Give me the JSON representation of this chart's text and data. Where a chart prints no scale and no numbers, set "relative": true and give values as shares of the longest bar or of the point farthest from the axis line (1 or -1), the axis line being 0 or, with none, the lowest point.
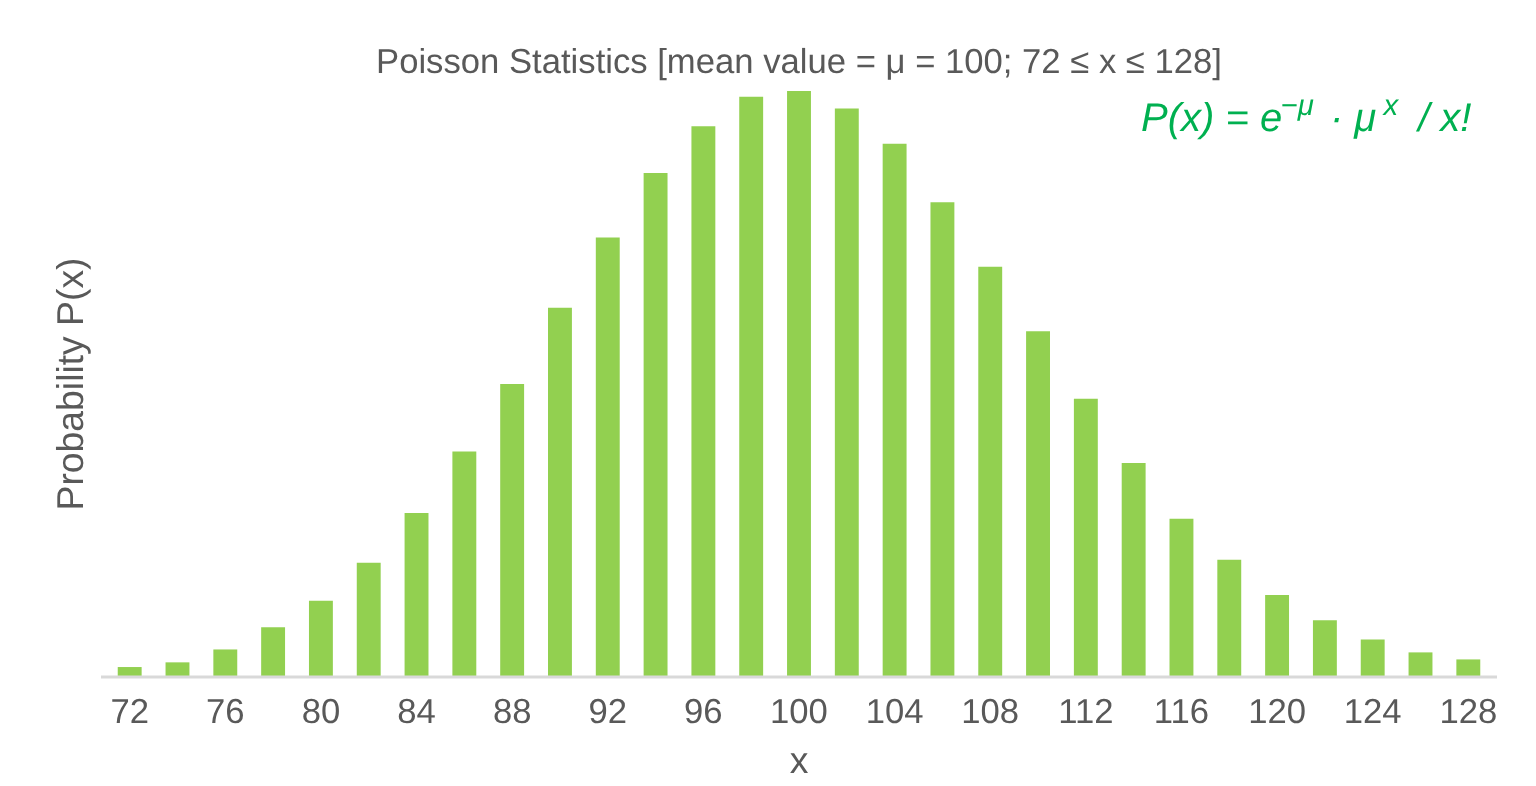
{
  "chart_data": {
    "type": "bar",
    "title": "Poisson Statistics [mean value = μ = 100; 72 ≤ x ≤ 128]",
    "xlabel": "x",
    "ylabel": "Probability P(x)",
    "relative": true,
    "color": "#92d050",
    "x": [
      72,
      74,
      76,
      78,
      80,
      82,
      84,
      86,
      88,
      90,
      92,
      94,
      96,
      98,
      100,
      102,
      104,
      106,
      108,
      110,
      112,
      114,
      116,
      118,
      120,
      122,
      124,
      126,
      128
    ],
    "values": [
      0.017,
      0.025,
      0.047,
      0.085,
      0.13,
      0.195,
      0.28,
      0.385,
      0.5,
      0.63,
      0.75,
      0.86,
      0.94,
      0.99,
      1,
      0.97,
      0.91,
      0.81,
      0.7,
      0.59,
      0.475,
      0.365,
      0.27,
      0.2,
      0.14,
      0.097,
      0.064,
      0.042,
      0.03
    ],
    "xlim": [
      70.8,
      129.2
    ],
    "xticks": [
      72,
      76,
      80,
      84,
      88,
      92,
      96,
      100,
      104,
      108,
      112,
      116,
      120,
      124,
      128
    ],
    "grid": false,
    "annotations": [
      "P(x) = e$^{−μ}$ · μ$^{x}$ / x!"
    ]
  }
}
